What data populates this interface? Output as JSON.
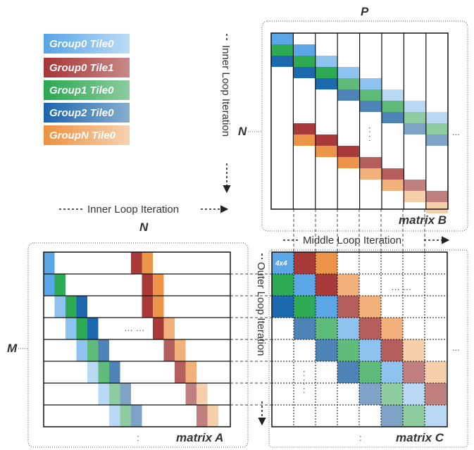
{
  "legend": [
    {
      "group": "Group0",
      "tile": "Tile0",
      "color": "#5aa6e6"
    },
    {
      "group": "Group0",
      "tile": "Tile1",
      "color": "#a83a3a"
    },
    {
      "group": "Group1",
      "tile": "Tile0",
      "color": "#2eaa55"
    },
    {
      "group": "Group2",
      "tile": "Tile0",
      "color": "#1d69b0"
    },
    {
      "group": "GroupN",
      "tile": "Tile0",
      "color": "#ee9448"
    }
  ],
  "labels": {
    "p": "P",
    "n_b": "N",
    "n_a": "N",
    "m": "M",
    "matrix_a": "matrix A",
    "matrix_b": "matrix B",
    "matrix_c": "matrix C",
    "tile_size": "4x4"
  },
  "iterations": {
    "inner_vertical": "Inner Loop Iteration",
    "inner_horizontal": "Inner Loop Iteration",
    "middle": "Middle Loop Iteration",
    "outer": "Outer Loop Iteration"
  },
  "ellipsis": {
    "b_inner": ":",
    "b_right": "...",
    "a_mid": "… …",
    "a_bottom": ":",
    "c_mid": "… …",
    "c_left": ":",
    "c_right": "...",
    "c_bottom": ":"
  }
}
